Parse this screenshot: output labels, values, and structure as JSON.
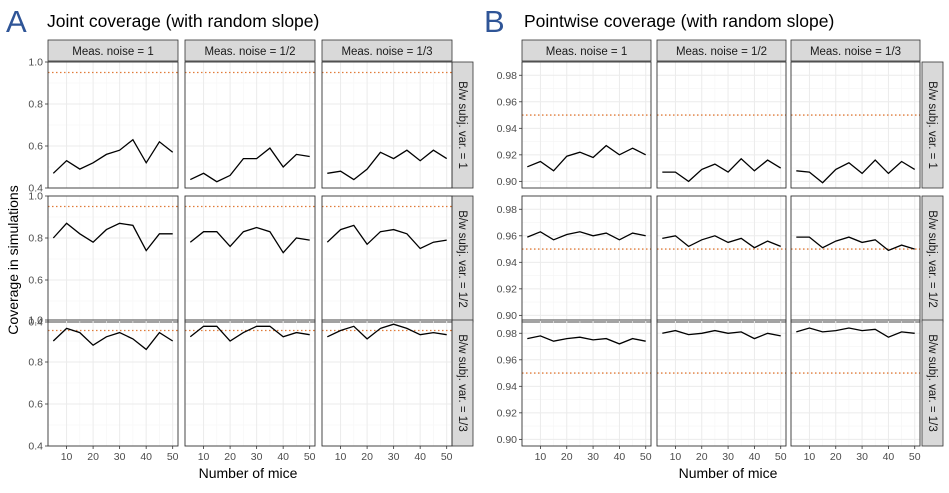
{
  "panels": [
    {
      "letter": "A",
      "title": "Joint coverage (with random slope)",
      "xlabel": "Number of mice",
      "ylabel": "Coverage in simulations"
    },
    {
      "letter": "B",
      "title": "Pointwise coverage (with random slope)",
      "xlabel": "Number of mice",
      "ylabel": ""
    }
  ],
  "colors": {
    "letter": "#2f5597",
    "line": "#000000",
    "reference": "#e07b39",
    "strip_fill": "#d9d9d9",
    "strip_border": "#333333",
    "grid_major": "#ebebeb",
    "grid_minor": "#f5f5f5",
    "panel_border": "#333333"
  },
  "chart_data": [
    {
      "type": "line",
      "title": "Joint coverage (with random slope)",
      "xlabel": "Number of mice",
      "ylabel": "Coverage in simulations",
      "x": [
        5,
        10,
        15,
        20,
        25,
        30,
        35,
        40,
        45,
        50
      ],
      "xlim": [
        3,
        52
      ],
      "xticks": [
        10,
        20,
        30,
        40,
        50
      ],
      "ylim": [
        0.4,
        1.0
      ],
      "yticks": [
        0.4,
        0.6,
        0.8,
        1.0
      ],
      "ytick_labels": [
        "0.4",
        "0.6",
        "0.8",
        "1.0"
      ],
      "grid": true,
      "reference_line": 0.95,
      "col_labels": [
        "Meas. noise = 1",
        "Meas. noise = 1/2",
        "Meas. noise = 1/3"
      ],
      "row_labels": [
        "B/w subj. var. = 1",
        "B/w subj. var. = 1/2",
        "B/w subj. var. = 1/3"
      ],
      "facets": [
        [
          {
            "values": [
              0.47,
              0.53,
              0.49,
              0.52,
              0.56,
              0.58,
              0.63,
              0.52,
              0.62,
              0.57
            ]
          },
          {
            "values": [
              0.44,
              0.47,
              0.43,
              0.46,
              0.54,
              0.54,
              0.59,
              0.5,
              0.56,
              0.55
            ]
          },
          {
            "values": [
              0.47,
              0.48,
              0.44,
              0.49,
              0.57,
              0.54,
              0.58,
              0.53,
              0.58,
              0.54
            ]
          }
        ],
        [
          {
            "values": [
              0.8,
              0.87,
              0.82,
              0.78,
              0.84,
              0.87,
              0.86,
              0.74,
              0.82,
              0.82
            ]
          },
          {
            "values": [
              0.78,
              0.83,
              0.83,
              0.76,
              0.83,
              0.85,
              0.83,
              0.73,
              0.8,
              0.79
            ]
          },
          {
            "values": [
              0.78,
              0.84,
              0.86,
              0.77,
              0.83,
              0.84,
              0.82,
              0.75,
              0.78,
              0.79
            ]
          }
        ],
        [
          {
            "values": [
              0.9,
              0.96,
              0.94,
              0.88,
              0.92,
              0.94,
              0.91,
              0.86,
              0.94,
              0.9
            ]
          },
          {
            "values": [
              0.92,
              0.97,
              0.97,
              0.9,
              0.94,
              0.97,
              0.97,
              0.92,
              0.94,
              0.93
            ]
          },
          {
            "values": [
              0.92,
              0.95,
              0.97,
              0.91,
              0.96,
              0.98,
              0.96,
              0.93,
              0.94,
              0.93
            ]
          }
        ]
      ]
    },
    {
      "type": "line",
      "title": "Pointwise coverage (with random slope)",
      "xlabel": "Number of mice",
      "ylabel": "",
      "x": [
        5,
        10,
        15,
        20,
        25,
        30,
        35,
        40,
        45,
        50
      ],
      "xlim": [
        3,
        52
      ],
      "xticks": [
        10,
        20,
        30,
        40,
        50
      ],
      "ylim": [
        0.895,
        0.99
      ],
      "yticks": [
        0.9,
        0.92,
        0.94,
        0.96,
        0.98
      ],
      "ytick_labels": [
        "0.90",
        "0.92",
        "0.94",
        "0.96",
        "0.98"
      ],
      "grid": true,
      "reference_line": 0.95,
      "col_labels": [
        "Meas. noise = 1",
        "Meas. noise = 1/2",
        "Meas. noise = 1/3"
      ],
      "row_labels": [
        "B/w subj. var. = 1",
        "B/w subj. var. = 1/2",
        "B/w subj. var. = 1/3"
      ],
      "facets": [
        [
          {
            "values": [
              0.911,
              0.915,
              0.908,
              0.919,
              0.922,
              0.918,
              0.927,
              0.92,
              0.925,
              0.92
            ]
          },
          {
            "values": [
              0.907,
              0.907,
              0.9,
              0.909,
              0.913,
              0.907,
              0.917,
              0.908,
              0.916,
              0.91
            ]
          },
          {
            "values": [
              0.908,
              0.907,
              0.899,
              0.909,
              0.914,
              0.906,
              0.916,
              0.906,
              0.915,
              0.909
            ]
          }
        ],
        [
          {
            "values": [
              0.959,
              0.963,
              0.957,
              0.961,
              0.963,
              0.96,
              0.962,
              0.957,
              0.962,
              0.96
            ]
          },
          {
            "values": [
              0.958,
              0.96,
              0.952,
              0.957,
              0.96,
              0.955,
              0.958,
              0.951,
              0.956,
              0.952
            ]
          },
          {
            "values": [
              0.959,
              0.959,
              0.951,
              0.956,
              0.959,
              0.955,
              0.957,
              0.949,
              0.953,
              0.95
            ]
          }
        ],
        [
          {
            "values": [
              0.976,
              0.978,
              0.974,
              0.976,
              0.977,
              0.975,
              0.976,
              0.972,
              0.976,
              0.974
            ]
          },
          {
            "values": [
              0.98,
              0.982,
              0.979,
              0.98,
              0.982,
              0.98,
              0.981,
              0.976,
              0.98,
              0.978
            ]
          },
          {
            "values": [
              0.981,
              0.984,
              0.981,
              0.982,
              0.984,
              0.982,
              0.983,
              0.977,
              0.981,
              0.98
            ]
          }
        ]
      ]
    }
  ]
}
